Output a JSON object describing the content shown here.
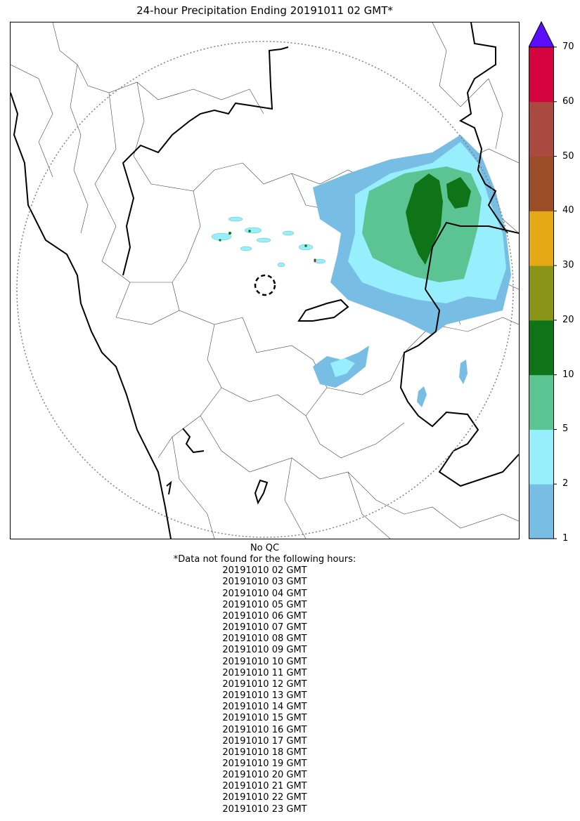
{
  "title": "24-hour Precipitation Ending 20191011 02 GMT*",
  "colorbar": {
    "ticks": [
      "1",
      "2",
      "5",
      "10",
      "20",
      "30",
      "40",
      "50",
      "60",
      "70"
    ],
    "colors": [
      "#78bde3",
      "#97eefc",
      "#5cc493",
      "#0f7318",
      "#8a9418",
      "#e6a916",
      "#9a4d26",
      "#a84a40",
      "#d5033f"
    ],
    "extend_color": "#5a0dff"
  },
  "notes": {
    "qc": "No QC",
    "missing_header": "*Data not found for the following hours:",
    "missing_hours": [
      "20191010 02 GMT",
      "20191010 03 GMT",
      "20191010 04 GMT",
      "20191010 05 GMT",
      "20191010 06 GMT",
      "20191010 07 GMT",
      "20191010 08 GMT",
      "20191010 09 GMT",
      "20191010 10 GMT",
      "20191010 11 GMT",
      "20191010 12 GMT",
      "20191010 13 GMT",
      "20191010 14 GMT",
      "20191010 15 GMT",
      "20191010 16 GMT",
      "20191010 17 GMT",
      "20191010 18 GMT",
      "20191010 19 GMT",
      "20191010 20 GMT",
      "20191010 21 GMT",
      "20191010 22 GMT",
      "20191010 23 GMT"
    ]
  }
}
